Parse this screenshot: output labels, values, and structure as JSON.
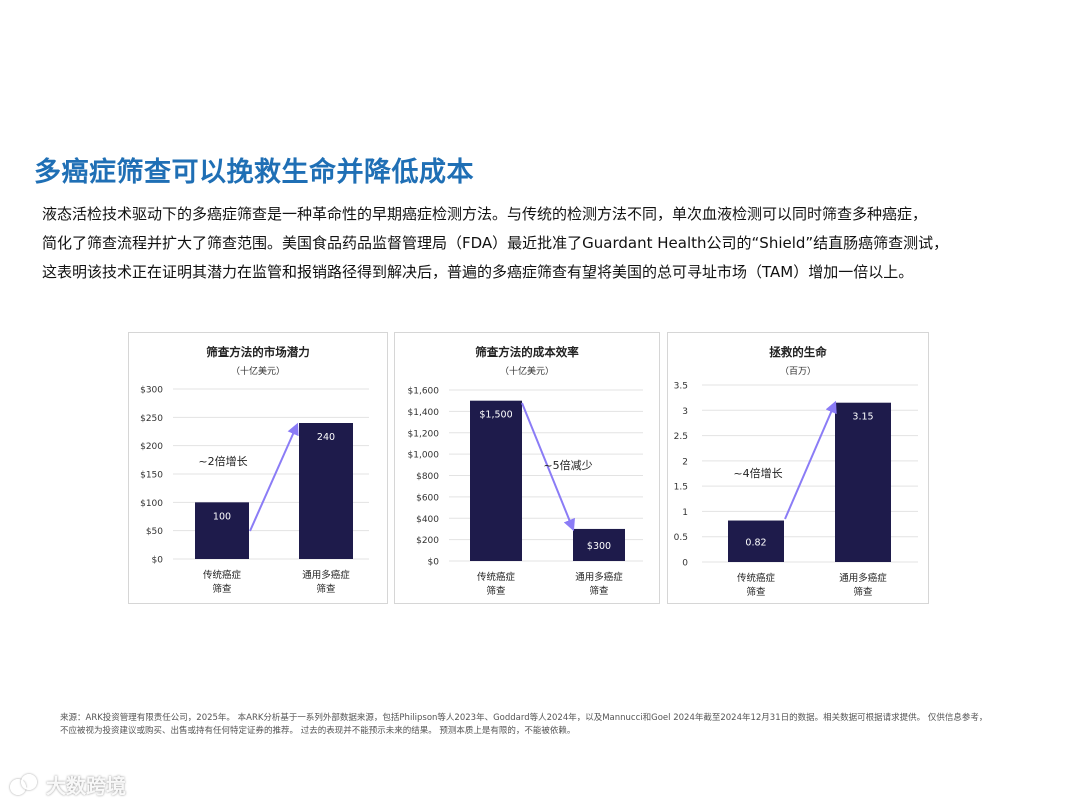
{
  "page": {
    "title": "多癌症筛查可以挽救生命并降低成本",
    "intro_lines": [
      "液态活检技术驱动下的多癌症筛查是一种革命性的早期癌症检测方法。与传统的检测方法不同，单次血液检测可以同时筛查多种癌症，",
      "简化了筛查流程并扩大了筛查范围。美国食品药品监督管理局（FDA）最近批准了Guardant Health公司的“Shield”结直肠癌筛查测试，",
      "这表明该技术正在证明其潜力在监管和报销路径得到解决后，普遍的多癌症筛查有望将美国的总可寻址市场（TAM）增加一倍以上。"
    ],
    "footnote_lines": [
      "来源：ARK投资管理有限责任公司，2025年。 本ARK分析基于一系列外部数据来源，包括Philipson等人2023年、Goddard等人2024年，以及Mannucci和Goel 2024年截至2024年12月31日的数据。相关数据可根据请求提供。 仅供信息参考，",
      "不应被视为投资建议或购买、出售或持有任何特定证券的推荐。 过去的表现并不能预示未来的结果。 预测本质上是有限的，不能被依赖。"
    ],
    "watermark": "大数跨境"
  },
  "colors": {
    "title": "#1f6fb5",
    "bar": "#1e1b4b",
    "arrow": "#8b7cf6",
    "grid": "#e3e3e3"
  },
  "chart_data": [
    {
      "type": "bar",
      "title": "筛查方法的市场潜力",
      "subtitle": "（十亿美元）",
      "categories": [
        [
          "传统癌症",
          "筛查"
        ],
        [
          "通用多癌症",
          "筛查"
        ]
      ],
      "values": [
        100,
        240
      ],
      "value_labels": [
        "100",
        "240"
      ],
      "ylim": [
        0,
        300
      ],
      "ticks": [
        0,
        50,
        100,
        150,
        200,
        250,
        300
      ],
      "tick_labels": [
        "$0",
        "$50",
        "$100",
        "$150",
        "$200",
        "$250",
        "$300"
      ],
      "annotation": "~2倍增长",
      "grid": true
    },
    {
      "type": "bar",
      "title": "筛查方法的成本效率",
      "subtitle": "（十亿美元）",
      "categories": [
        [
          "传统癌症",
          "筛查"
        ],
        [
          "通用多癌症",
          "筛查"
        ]
      ],
      "values": [
        1500,
        300
      ],
      "value_labels": [
        "$1,500",
        "$300"
      ],
      "ylim": [
        0,
        1600
      ],
      "ticks": [
        0,
        200,
        400,
        600,
        800,
        1000,
        1200,
        1400,
        1600
      ],
      "tick_labels": [
        "$0",
        "$200",
        "$400",
        "$600",
        "$800",
        "$1,000",
        "$1,200",
        "$1,400",
        "$1,600"
      ],
      "annotation": "~5倍减少",
      "grid": true
    },
    {
      "type": "bar",
      "title": "拯救的生命",
      "subtitle": "（百万）",
      "categories": [
        [
          "传统癌症",
          "筛查"
        ],
        [
          "通用多癌症",
          "筛查"
        ]
      ],
      "values": [
        0.82,
        3.15
      ],
      "value_labels": [
        "0.82",
        "3.15"
      ],
      "ylim": [
        0,
        3.5
      ],
      "ticks": [
        0,
        0.5,
        1,
        1.5,
        2,
        2.5,
        3,
        3.5
      ],
      "tick_labels": [
        "0",
        "0.5",
        "1",
        "1.5",
        "2",
        "2.5",
        "3",
        "3.5"
      ],
      "annotation": "~4倍增长",
      "grid": true
    }
  ]
}
